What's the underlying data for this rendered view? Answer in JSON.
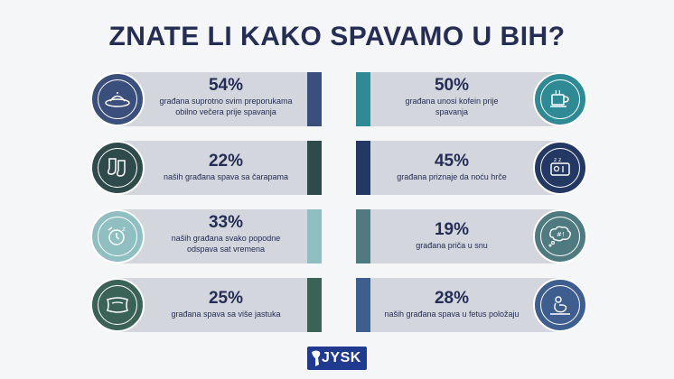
{
  "title": "ZNATE LI KAKO SPAVAMO U BIH?",
  "logo": {
    "text": "JYSK",
    "bg": "#1f3a8f"
  },
  "stats": [
    {
      "percent": "54%",
      "line1": "građana suprotno svim preporukama",
      "line2": "obilno večera prije spavanja",
      "icon": "dinner-plate-icon",
      "color": "#3b4f7d"
    },
    {
      "percent": "22%",
      "line1": "naših građana spava sa čarapama",
      "line2": "",
      "icon": "socks-icon",
      "color": "#2f4a4a"
    },
    {
      "percent": "33%",
      "line1": "naših građana svako popodne",
      "line2": "odspava sat vremena",
      "icon": "alarm-clock-icon",
      "color": "#8fbfc0"
    },
    {
      "percent": "25%",
      "line1": "građana spava sa više jastuka",
      "line2": "",
      "icon": "pillow-icon",
      "color": "#3a6256"
    },
    {
      "percent": "50%",
      "line1": "građana unosi kofein prije",
      "line2": "spavanja",
      "icon": "coffee-cup-icon",
      "color": "#2e8a95"
    },
    {
      "percent": "45%",
      "line1": "građana priznaje da noću hrče",
      "line2": "",
      "icon": "snoring-icon",
      "color": "#243864"
    },
    {
      "percent": "19%",
      "line1": "građana priča u snu",
      "line2": "",
      "icon": "speech-bubble-icon",
      "color": "#4e7a80"
    },
    {
      "percent": "28%",
      "line1": "naših građana spava u fetus položaju",
      "line2": "",
      "icon": "fetal-position-icon",
      "color": "#3f5e90"
    }
  ]
}
